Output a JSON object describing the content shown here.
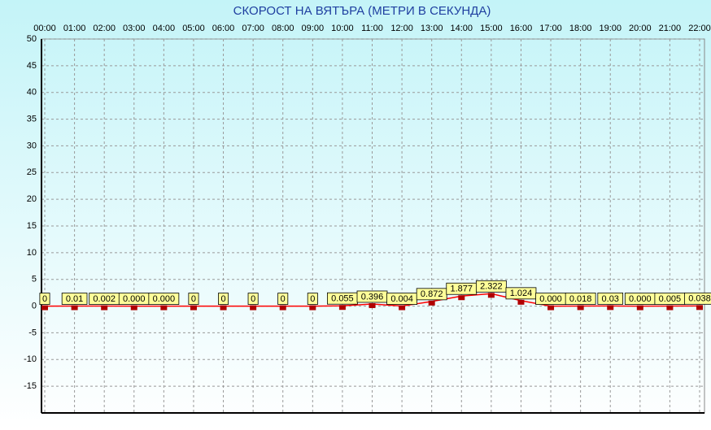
{
  "chart_data": {
    "type": "line",
    "title": "СКОРОСТ НА ВЯТЪРА (МЕТРИ В СЕКУНДА)",
    "categories": [
      "00:00",
      "01:00",
      "02:00",
      "03:00",
      "04:00",
      "05:00",
      "06:00",
      "07:00",
      "08:00",
      "09:00",
      "10:00",
      "11:00",
      "12:00",
      "13:00",
      "14:00",
      "15:00",
      "16:00",
      "17:00",
      "18:00",
      "19:00",
      "20:00",
      "21:00",
      "22:00"
    ],
    "values": [
      0,
      0.01,
      0.002,
      0,
      0,
      0,
      0,
      0,
      0,
      0,
      0.055,
      0.396,
      0.004,
      0.872,
      1.877,
      2.322,
      1.024,
      0,
      0.018,
      0.03,
      0,
      0.005,
      0.038
    ],
    "value_labels": [
      "0",
      "0.01",
      "0.002",
      "0.000",
      "0.000",
      "0",
      "0",
      "0",
      "0",
      "0",
      "0.055",
      "0.396",
      "0.004",
      "0.872",
      "1.877",
      "2.322",
      "1.024",
      "0.000",
      "0.018",
      "0.03",
      "0.000",
      "0.005",
      "0.038"
    ],
    "color": "#ff0000",
    "marker_color": "#b00000",
    "label_color": "#ffff99",
    "ylim": [
      -20,
      50
    ],
    "yticks": [
      50,
      45,
      40,
      35,
      30,
      25,
      20,
      15,
      10,
      5,
      0,
      -5,
      -10,
      -15
    ],
    "grid": true
  }
}
